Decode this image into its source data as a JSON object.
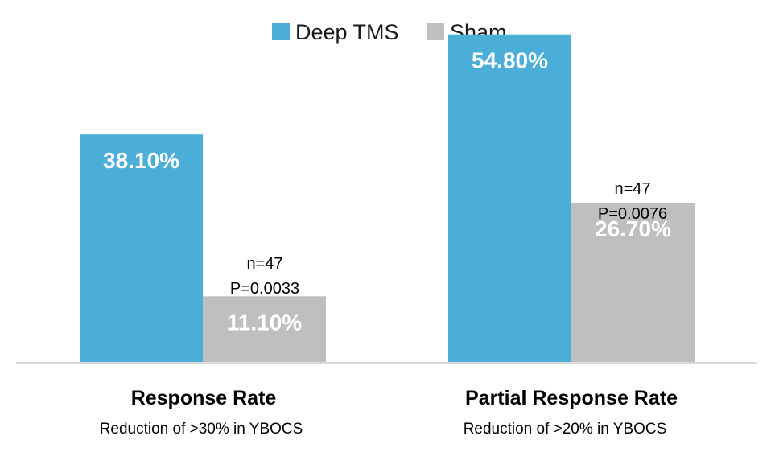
{
  "chart_data": {
    "type": "bar",
    "categories": [
      "Response Rate",
      "Partial Response Rate"
    ],
    "category_subtitles": [
      "Reduction of >30% in YBOCS",
      "Reduction of >20% in YBOCS"
    ],
    "series": [
      {
        "name": "Deep TMS",
        "values": [
          38.1,
          54.8
        ],
        "labels": [
          "38.10%",
          "54.80%"
        ],
        "color": "#4AAED8"
      },
      {
        "name": "Sham",
        "values": [
          11.1,
          26.7
        ],
        "labels": [
          "11.10%",
          "26.70%"
        ],
        "color": "#BFBFBF"
      }
    ],
    "annotations": [
      {
        "category": "Response Rate",
        "lines": [
          "n=47",
          "P=0.0033"
        ]
      },
      {
        "category": "Partial Response Rate",
        "lines": [
          "n=47",
          "P=0.0076"
        ]
      }
    ],
    "title": "",
    "xlabel": "",
    "ylabel": "",
    "ylim": [
      0,
      60
    ],
    "legend_position": "top-center",
    "grid": false,
    "axis_color": "#D9D9D9"
  }
}
